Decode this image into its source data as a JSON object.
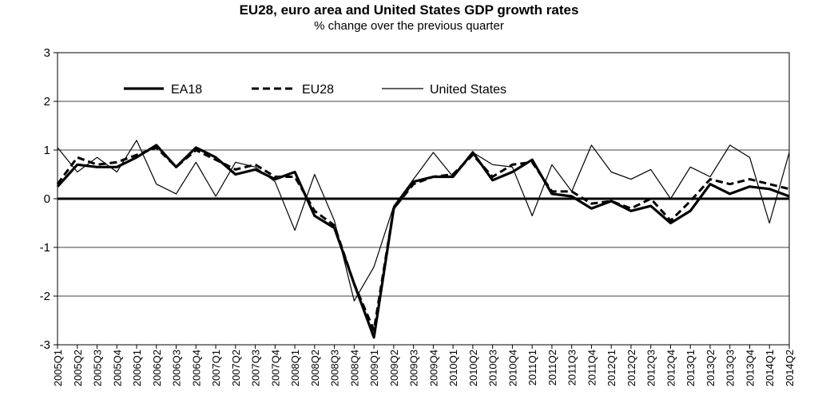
{
  "chart_data": {
    "type": "line",
    "title": "EU28, euro area and United States GDP growth rates",
    "subtitle": "% change over the previous quarter",
    "ylim": [
      -3,
      3
    ],
    "yticks": [
      "3",
      "2",
      "1",
      "0",
      "-1",
      "-2",
      "-3"
    ],
    "grid": "horizontal",
    "legend_position": "top-left",
    "categories": [
      "2005Q1",
      "2005Q2",
      "2005Q3",
      "2005Q4",
      "2006Q1",
      "2006Q2",
      "2006Q3",
      "2006Q4",
      "2007Q1",
      "2007Q2",
      "2007Q3",
      "2007Q4",
      "2008Q1",
      "2008Q2",
      "2008Q3",
      "2008Q4",
      "2009Q1",
      "2009Q2",
      "2009Q3",
      "2009Q4",
      "2010Q1",
      "2010Q2",
      "2010Q3",
      "2010Q4",
      "2011Q1",
      "2011Q2",
      "2011Q3",
      "2011Q4",
      "2012Q1",
      "2012Q2",
      "2012Q3",
      "2012Q4",
      "2013Q1",
      "2013Q2",
      "2013Q3",
      "2013Q4",
      "2014Q1",
      "2014Q2"
    ],
    "tick_labels_shown": [
      "2005Q1",
      "2005Q2",
      "2005Q3",
      "2005Q4",
      "2006Q1",
      "2006Q2",
      "2006Q3",
      "2006Q4",
      "2007Q1",
      "2007Q2",
      "2007Q3",
      "2007Q4",
      "2008Q1",
      "2008Q2",
      "2008Q3",
      "2008Q4",
      "2009Q1",
      "2009Q2",
      "2009Q3",
      "2009Q4",
      "2010Q1",
      "2010Q2",
      "2010Q3",
      "2010Q4",
      "2011Q1",
      "2011Q2",
      "2011Q3",
      "2011Q4",
      "2012Q1",
      "2012Q2",
      "2012Q3",
      "2012Q4",
      "2013Q1",
      "2013Q2",
      "2013Q3",
      "2013Q4",
      "2014Q1",
      "2014Q2"
    ],
    "series": [
      {
        "name": "EA18",
        "style": "thick-solid",
        "color": "#000000",
        "values": [
          0.25,
          0.7,
          0.65,
          0.65,
          0.85,
          1.1,
          0.65,
          1.05,
          0.85,
          0.5,
          0.6,
          0.4,
          0.55,
          -0.35,
          -0.6,
          -1.75,
          -2.85,
          -0.2,
          0.35,
          0.45,
          0.45,
          0.95,
          0.38,
          0.55,
          0.8,
          0.1,
          0.05,
          -0.2,
          -0.05,
          -0.25,
          -0.15,
          -0.5,
          -0.25,
          0.3,
          0.1,
          0.25,
          0.2,
          0.05
        ]
      },
      {
        "name": "EU28",
        "style": "thick-dashed",
        "color": "#000000",
        "values": [
          0.3,
          0.85,
          0.7,
          0.75,
          0.9,
          1.05,
          0.65,
          1.0,
          0.8,
          0.6,
          0.7,
          0.45,
          0.45,
          -0.25,
          -0.55,
          -1.75,
          -2.7,
          -0.2,
          0.3,
          0.45,
          0.5,
          0.9,
          0.45,
          0.7,
          0.75,
          0.15,
          0.15,
          -0.1,
          -0.05,
          -0.2,
          0.0,
          -0.45,
          -0.05,
          0.4,
          0.3,
          0.4,
          0.3,
          0.2
        ]
      },
      {
        "name": "United States",
        "style": "thin-solid",
        "color": "#000000",
        "values": [
          1.05,
          0.55,
          0.85,
          0.55,
          1.2,
          0.3,
          0.1,
          0.75,
          0.05,
          0.75,
          0.65,
          0.35,
          -0.65,
          0.5,
          -0.45,
          -2.1,
          -1.4,
          -0.15,
          0.4,
          0.95,
          0.45,
          0.95,
          0.7,
          0.65,
          -0.35,
          0.7,
          0.15,
          1.1,
          0.55,
          0.4,
          0.6,
          0.0,
          0.65,
          0.45,
          1.1,
          0.85,
          -0.5,
          0.95
        ]
      }
    ]
  }
}
